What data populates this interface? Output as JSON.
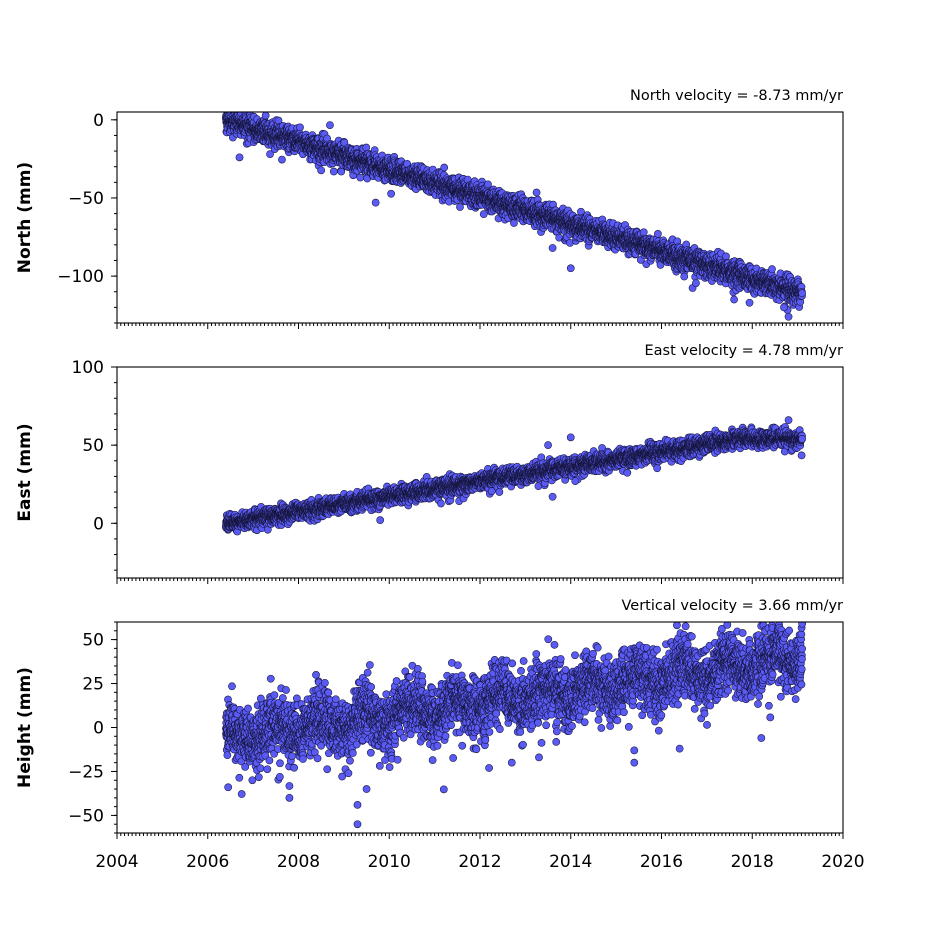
{
  "chart_data": [
    {
      "type": "scatter",
      "title": "North velocity = -8.73 mm/yr",
      "ylabel": "North (mm)",
      "xlim": [
        2004,
        2020
      ],
      "ylim": [
        -130,
        5
      ],
      "yticks": [
        0,
        -50,
        -100
      ],
      "x_tick_labels_shown": false,
      "point_color": "#5a5af5",
      "series": [
        {
          "time_range": [
            2006.4,
            2019.1
          ],
          "trend": {
            "start_value": 0,
            "rate_mm_per_yr": -8.73
          },
          "scatter_mm": 3.5,
          "outliers": [
            [
              2006.7,
              -24
            ],
            [
              2009.7,
              -53
            ],
            [
              2013.6,
              -82
            ],
            [
              2014.0,
              -95
            ],
            [
              2017.6,
              -115
            ],
            [
              2018.7,
              -120
            ],
            [
              2018.8,
              -126
            ]
          ]
        }
      ]
    },
    {
      "type": "scatter",
      "title": "East velocity = 4.78 mm/yr",
      "ylabel": "East (mm)",
      "xlim": [
        2004,
        2020
      ],
      "ylim": [
        -35,
        100
      ],
      "yticks": [
        0,
        50,
        100
      ],
      "x_tick_labels_shown": false,
      "point_color": "#5a5af5",
      "series": [
        {
          "time_range": [
            2006.4,
            2019.1
          ],
          "trend": {
            "start_value": 0,
            "rate_mm_per_yr": 4.78
          },
          "plateau": {
            "from": 2017.8,
            "value": 54
          },
          "scatter_mm": 2.5,
          "outliers": [
            [
              2009.8,
              2
            ],
            [
              2013.5,
              50
            ],
            [
              2013.6,
              17
            ],
            [
              2014.0,
              55
            ],
            [
              2014.1,
              27
            ],
            [
              2018.8,
              66
            ]
          ]
        }
      ]
    },
    {
      "type": "scatter",
      "title": "Vertical velocity = 3.66 mm/yr",
      "ylabel": "Height (mm)",
      "xlabel": "",
      "xlim": [
        2004,
        2020
      ],
      "ylim": [
        -60,
        60
      ],
      "yticks": [
        50,
        25,
        0,
        -25,
        -50
      ],
      "xticks": [
        2004,
        2006,
        2008,
        2010,
        2012,
        2014,
        2016,
        2018,
        2020
      ],
      "x_tick_labels_shown": true,
      "point_color": "#5a5af5",
      "series": [
        {
          "time_range": [
            2006.4,
            2019.1
          ],
          "trend": {
            "start_value": -6,
            "rate_mm_per_yr": 3.66
          },
          "seasonal_amplitude_mm": 5,
          "scatter_mm": 8,
          "outliers": [
            [
              2006.45,
              -34
            ],
            [
              2007.8,
              -40
            ],
            [
              2009.1,
              -26
            ],
            [
              2009.3,
              -55
            ],
            [
              2009.3,
              -44
            ],
            [
              2009.5,
              -35
            ],
            [
              2012.2,
              -23
            ],
            [
              2012.7,
              -20
            ],
            [
              2013.3,
              -17
            ],
            [
              2015.4,
              -13
            ],
            [
              2015.4,
              -20
            ],
            [
              2016.4,
              -12
            ],
            [
              2018.2,
              -6
            ],
            [
              2019.1,
              59
            ]
          ]
        }
      ]
    }
  ]
}
